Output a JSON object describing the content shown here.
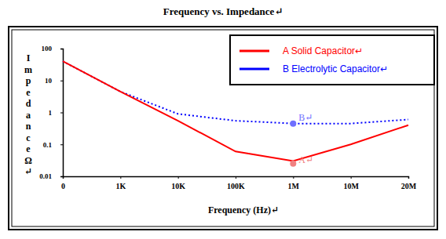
{
  "chart_data": {
    "type": "line",
    "title": "Frequency vs. Impedance↵",
    "x_label": "Frequency (Hz)↵",
    "y_label": "Impedance Ω↵",
    "categories": [
      "0",
      "1K",
      "10K",
      "100K",
      "1M",
      "10M",
      "20M"
    ],
    "series": [
      {
        "name": "B Electrolytic Capacitor↵",
        "color": "#0000ff",
        "line_style": "dotted",
        "values": [
          40,
          4.5,
          0.9,
          0.55,
          0.45,
          0.45,
          0.6
        ]
      },
      {
        "name": "A Solid Capacitor↵",
        "color": "#ff0000",
        "line_style": "solid",
        "values": [
          40,
          4.5,
          0.55,
          0.06,
          0.03,
          0.1,
          0.4
        ]
      }
    ],
    "annotations": [
      {
        "text": "A↵",
        "x": "1M",
        "y": 0.025,
        "color": "#f08080"
      },
      {
        "text": "B↵",
        "x": "1M",
        "y": 0.45,
        "color": "#6f6fff"
      }
    ],
    "ylim": [
      0.01,
      100
    ],
    "yticks": [
      0.01,
      0.1,
      1,
      10,
      100
    ],
    "log": "y",
    "grid": false,
    "legend": "upper right"
  }
}
